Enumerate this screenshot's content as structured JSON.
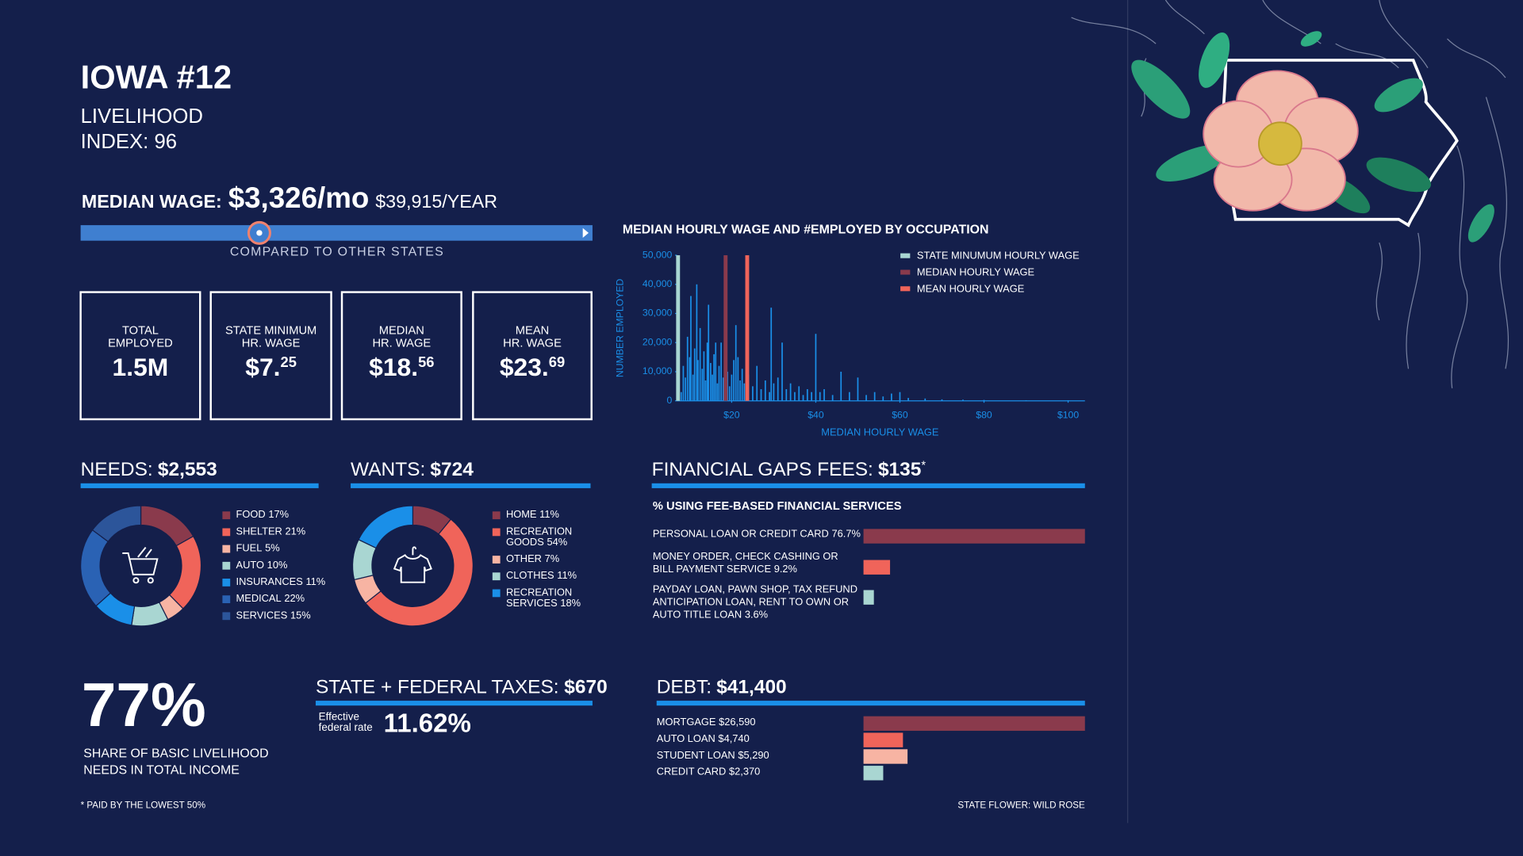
{
  "header": {
    "title": "IOWA #12",
    "subtitle_lines": [
      "LIVELIHOOD",
      "INDEX: 96"
    ]
  },
  "median_wage": {
    "label": "MEDIAN WAGE:",
    "monthly": "$3,326/mo",
    "yearly": "$39,915/YEAR",
    "comparison_caption": "COMPARED TO OTHER STATES"
  },
  "stat_cards": [
    {
      "label_lines": [
        "TOTAL",
        "EMPLOYED"
      ],
      "value": "1.5M"
    },
    {
      "label_lines": [
        "STATE MINIMUM",
        "HR. WAGE"
      ],
      "value": "$7.",
      "value_sup": "25"
    },
    {
      "label_lines": [
        "MEDIAN",
        "HR. WAGE"
      ],
      "value": "$18.",
      "value_sup": "56"
    },
    {
      "label_lines": [
        "MEAN",
        "HR. WAGE"
      ],
      "value": "$23.",
      "value_sup": "69"
    }
  ],
  "chart_data": [
    {
      "type": "spikes",
      "title": "MEDIAN HOURLY WAGE AND #EMPLOYED BY OCCUPATION",
      "xlabel": "MEDIAN HOURLY WAGE",
      "ylabel": "NUMBER EMPLOYED",
      "color": "#1a8fe8",
      "xlim": [
        7,
        104
      ],
      "ylim": [
        0,
        50000
      ],
      "xticks": [
        {
          "value": 20,
          "label": "$20"
        },
        {
          "value": 40,
          "label": "$40"
        },
        {
          "value": 60,
          "label": "$60"
        },
        {
          "value": 80,
          "label": "$80"
        },
        {
          "value": 100,
          "label": "$100"
        }
      ],
      "yticks": [
        0,
        {
          "value": 10000,
          "label": "10,000"
        },
        {
          "value": 20000,
          "label": "20,000"
        },
        {
          "value": 30000,
          "label": "30,000"
        },
        {
          "value": 40000,
          "label": "40,000"
        },
        {
          "value": 50000,
          "label": "50,000"
        }
      ],
      "x": [
        8.0,
        8.5,
        9.0,
        9.5,
        10.0,
        10.3,
        10.8,
        11.2,
        11.7,
        12.0,
        12.5,
        13.0,
        13.4,
        13.8,
        14.2,
        14.5,
        15.0,
        15.4,
        15.8,
        16.2,
        16.6,
        17.0,
        17.5,
        18.0,
        18.3,
        19.0,
        19.5,
        20.0,
        20.5,
        21.0,
        21.5,
        22.0,
        22.5,
        23.0,
        24.0,
        25.0,
        26.0,
        27.0,
        28.0,
        29.0,
        29.4,
        30.0,
        31.0,
        32.0,
        33.0,
        34.0,
        35.0,
        36.0,
        37.0,
        38.0,
        39.0,
        40.0,
        41.0,
        42.0,
        44.0,
        46.0,
        48.0,
        50.0,
        52.0,
        54.0,
        56.0,
        58.0,
        60.0,
        62.0,
        66.0,
        70.0,
        75.0,
        80.0,
        90.0,
        100.0
      ],
      "values": [
        3000,
        12000,
        8000,
        22000,
        15000,
        36000,
        9000,
        18000,
        40000,
        14000,
        25000,
        11000,
        17000,
        7000,
        20000,
        33000,
        13000,
        9000,
        16000,
        20000,
        6000,
        12000,
        20000,
        8000,
        15000,
        10000,
        5000,
        9000,
        14000,
        26000,
        15000,
        7000,
        11000,
        6000,
        9000,
        5000,
        12000,
        4000,
        7000,
        3000,
        32000,
        6000,
        8000,
        20000,
        4000,
        6000,
        3000,
        5000,
        2000,
        4000,
        3000,
        23000,
        3000,
        4000,
        2000,
        10000,
        3000,
        8000,
        2000,
        3000,
        1500,
        2500,
        3000,
        1000,
        800,
        500,
        400,
        300,
        200,
        200
      ],
      "reference_lines": [
        {
          "name": "STATE MINUMUM HOURLY WAGE",
          "value": 7.25,
          "color": "#a9d6d2"
        },
        {
          "name": "MEDIAN HOURLY WAGE",
          "value": 18.56,
          "color": "#8a3a4c"
        },
        {
          "name": "MEAN HOURLY WAGE",
          "value": 23.69,
          "color": "#f0645a"
        }
      ]
    },
    {
      "type": "donut",
      "title": "NEEDS:",
      "total": "$2,553",
      "categories": [
        "FOOD",
        "SHELTER",
        "FUEL",
        "AUTO",
        "INSURANCES",
        "MEDICAL",
        "SERVICES"
      ],
      "values": [
        17,
        21,
        5,
        10,
        11,
        22,
        15
      ],
      "value_labels": [
        "17%",
        "21%",
        "5%",
        "10%",
        "11%",
        "22%",
        "15%"
      ],
      "colors": [
        "#8a3a4c",
        "#f0645a",
        "#f7b4a3",
        "#a9d6d2",
        "#1a8fe8",
        "#2a62b4",
        "#2c559a"
      ]
    },
    {
      "type": "donut",
      "title": "WANTS:",
      "total": "$724",
      "categories": [
        "HOME",
        [
          "RECREATION",
          "GOODS"
        ],
        "OTHER",
        "CLOTHES",
        [
          "RECREATION",
          "SERVICES"
        ]
      ],
      "values": [
        11,
        54,
        7,
        11,
        18
      ],
      "value_labels": [
        "11%",
        "54%",
        "7%",
        "11%",
        "18%"
      ],
      "colors": [
        "#8a3a4c",
        "#f0645a",
        "#f7b4a3",
        "#a9d6d2",
        "#1a8fe8"
      ]
    },
    {
      "type": "hbar",
      "title": "FINANCIAL GAPS FEES:",
      "total": "$135",
      "total_note": "*",
      "subtitle": "% USING FEE-BASED FINANCIAL SERVICES",
      "categories": [
        "PERSONAL LOAN OR CREDIT CARD",
        [
          "MONEY ORDER, CHECK CASHING OR",
          "BILL PAYMENT SERVICE"
        ],
        [
          "PAYDAY LOAN, PAWN SHOP, TAX REFUND",
          "ANTICIPATION LOAN, RENT TO OWN OR",
          "AUTO TITLE LOAN"
        ]
      ],
      "values": [
        76.7,
        9.2,
        3.6
      ],
      "value_labels": [
        "76.7%",
        "9.2%",
        "3.6%"
      ],
      "colors": [
        "#8a3a4c",
        "#f0645a",
        "#a9d6d2"
      ]
    },
    {
      "type": "hbar",
      "title": "DEBT:",
      "total": "$41,400",
      "categories": [
        "MORTGAGE",
        "AUTO LOAN",
        "STUDENT LOAN",
        "CREDIT CARD"
      ],
      "values": [
        26590,
        4740,
        5290,
        2370
      ],
      "value_labels": [
        "$26,590",
        "$4,740",
        "$5,290",
        "$2,370"
      ],
      "colors": [
        "#8a3a4c",
        "#f0645a",
        "#f7b4a3",
        "#a9d6d2"
      ]
    }
  ],
  "share": {
    "value": "77%",
    "caption_lines": [
      "SHARE OF BASIC LIVELIHOOD",
      "NEEDS IN TOTAL INCOME"
    ]
  },
  "taxes": {
    "title": "STATE + FEDERAL TAXES:",
    "amount": "$670",
    "rate_label_lines": [
      "Effective",
      "federal rate"
    ],
    "rate": "11.62%"
  },
  "footnote": "* PAID BY THE LOWEST 50%",
  "state_flower": "STATE FLOWER: WILD ROSE"
}
